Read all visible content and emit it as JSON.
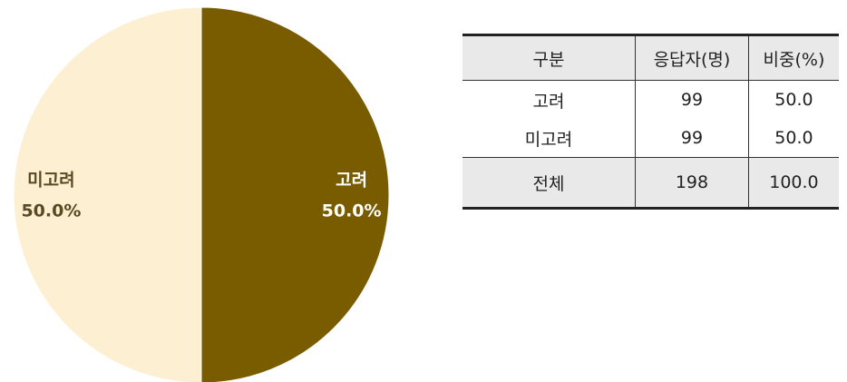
{
  "chart_data": {
    "type": "pie",
    "categories": [
      "고려",
      "미고려"
    ],
    "values": [
      50,
      50
    ],
    "value_labels": [
      "50.0%",
      "50.0%"
    ],
    "colors": [
      "#7a5c00",
      "#fdf0d2"
    ],
    "label_colors": [
      "#ffffff",
      "#5a4a24"
    ]
  },
  "table": {
    "header": [
      "구분",
      "응답자(명)",
      "비중(%)"
    ],
    "rows": [
      [
        "고려",
        "99",
        "50.0"
      ],
      [
        "미고려",
        "99",
        "50.0"
      ]
    ],
    "total": [
      "전체",
      "198",
      "100.0"
    ]
  }
}
